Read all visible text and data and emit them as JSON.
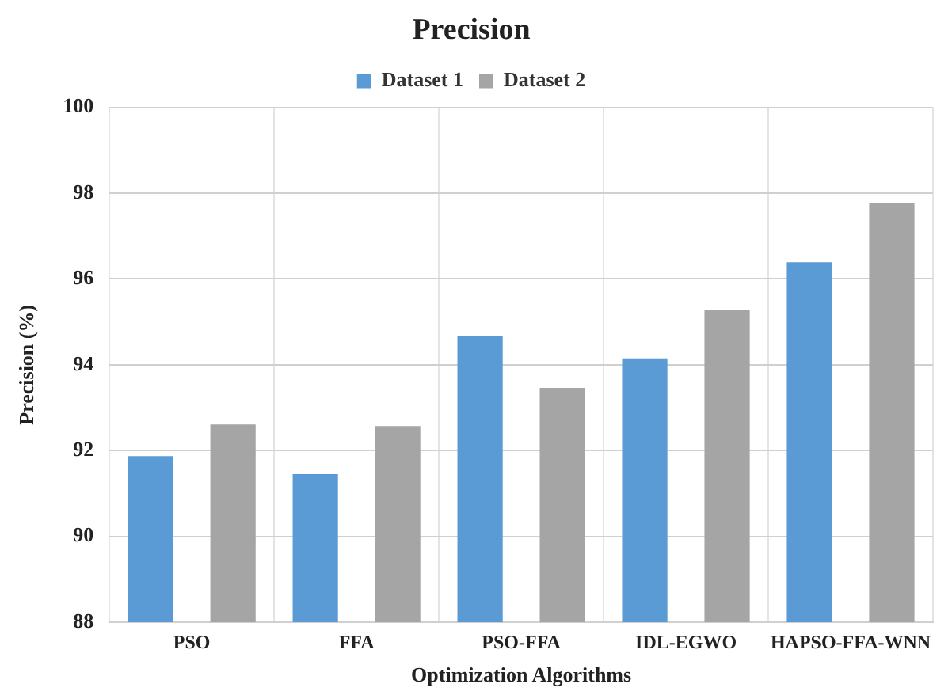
{
  "chart_data": {
    "type": "bar",
    "title": "Precision",
    "xlabel": "Optimization Algorithms",
    "ylabel": "Precision (%)",
    "categories": [
      "PSO",
      "FFA",
      "PSO-FFA",
      "IDL-EGWO",
      "HAPSO-FFA-WNN"
    ],
    "series": [
      {
        "name": "Dataset 1",
        "color": "#5b9bd5",
        "values": [
          91.87,
          91.45,
          94.67,
          94.15,
          96.39
        ]
      },
      {
        "name": "Dataset 2",
        "color": "#a5a5a5",
        "values": [
          92.61,
          92.57,
          93.46,
          95.27,
          97.78
        ]
      }
    ],
    "ylim": [
      88,
      100
    ],
    "yticks": [
      88,
      90,
      92,
      94,
      96,
      98,
      100
    ],
    "grid": true,
    "legend": "top"
  }
}
